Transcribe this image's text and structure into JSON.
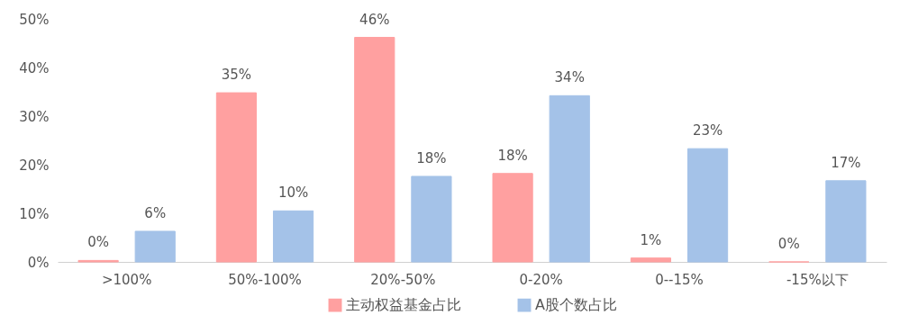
{
  "chart_data": {
    "type": "bar",
    "categories": [
      ">100%",
      "50%-100%",
      "20%-50%",
      "0-20%",
      "0--15%",
      "-15%以下"
    ],
    "series": [
      {
        "name": "主动权益基金占比",
        "color": "#ffa0a0",
        "values": [
          0.3,
          34.8,
          46.2,
          18.2,
          0.8,
          0
        ],
        "value_labels": [
          "0%",
          "35%",
          "46%",
          "18%",
          "1%",
          "0%"
        ]
      },
      {
        "name": "A股个数占比",
        "color": "#a4c2e8",
        "values": [
          6.3,
          10.5,
          17.6,
          34.2,
          23.3,
          16.7
        ],
        "value_labels": [
          "6%",
          "10%",
          "18%",
          "34%",
          "23%",
          "17%"
        ]
      }
    ],
    "ylim": [
      0,
      50
    ],
    "yticks": [
      {
        "value": 0,
        "label": "0%"
      },
      {
        "value": 10,
        "label": "10%"
      },
      {
        "value": 20,
        "label": "20%"
      },
      {
        "value": 30,
        "label": "30%"
      },
      {
        "value": 40,
        "label": "40%"
      },
      {
        "value": 50,
        "label": "50%"
      }
    ],
    "grid": false,
    "legend": "bottom"
  }
}
